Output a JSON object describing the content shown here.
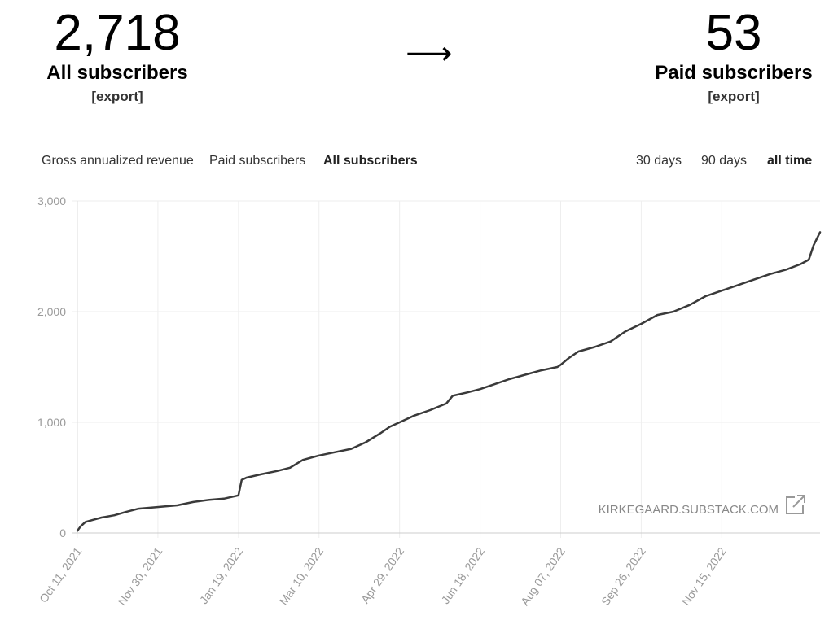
{
  "summary": {
    "all_subscribers": {
      "value": "2,718",
      "label": "All subscribers",
      "export": "[export]"
    },
    "arrow": "⟶",
    "paid_subscribers": {
      "value": "53",
      "label": "Paid subscribers",
      "export": "[export]"
    }
  },
  "metric_tabs": [
    {
      "label": "Gross annualized revenue",
      "active": false
    },
    {
      "label": "Paid subscribers",
      "active": false
    },
    {
      "label": "All subscribers",
      "active": true
    }
  ],
  "range_tabs": [
    {
      "label": "30 days",
      "active": false
    },
    {
      "label": "90 days",
      "active": false
    },
    {
      "label": "all time",
      "active": true
    }
  ],
  "watermark": "KIRKEGAARD.SUBSTACK.COM",
  "icons": {
    "external": "external-link-icon"
  },
  "colors": {
    "line": "#3a3a3a",
    "grid": "#eeeeee",
    "axis_text": "#999999"
  },
  "chart_data": {
    "type": "line",
    "title": "",
    "xlabel": "",
    "ylabel": "",
    "ylim": [
      0,
      3000
    ],
    "yticks": [
      0,
      1000,
      2000,
      3000
    ],
    "ytick_labels": [
      "0",
      "1,000",
      "2,000",
      "3,000"
    ],
    "xlim": [
      "2021-10-11",
      "2023-01-15"
    ],
    "xticks": [
      "2021-10-11",
      "2021-11-30",
      "2022-01-19",
      "2022-03-10",
      "2022-04-29",
      "2022-06-18",
      "2022-08-07",
      "2022-09-26",
      "2022-11-15"
    ],
    "xtick_labels": [
      "Oct 11, 2021",
      "Nov 30, 2021",
      "Jan 19, 2022",
      "Mar 10, 2022",
      "Apr 29, 2022",
      "Jun 18, 2022",
      "Aug 07, 2022",
      "Sep 26, 2022",
      "Nov 15, 2022"
    ],
    "grid": true,
    "series": [
      {
        "x": [
          "2021-10-11",
          "2021-10-13",
          "2021-10-16",
          "2021-10-21",
          "2021-10-26",
          "2021-11-03",
          "2021-11-10",
          "2021-11-18",
          "2021-11-26",
          "2021-12-04",
          "2021-12-12",
          "2021-12-22",
          "2022-01-01",
          "2022-01-10",
          "2022-01-19",
          "2022-01-21",
          "2022-01-24",
          "2022-02-02",
          "2022-02-12",
          "2022-02-20",
          "2022-02-28",
          "2022-03-10",
          "2022-03-20",
          "2022-03-30",
          "2022-04-08",
          "2022-04-17",
          "2022-04-23",
          "2022-04-29",
          "2022-05-08",
          "2022-05-18",
          "2022-05-28",
          "2022-06-01",
          "2022-06-10",
          "2022-06-18",
          "2022-06-26",
          "2022-07-06",
          "2022-07-16",
          "2022-07-26",
          "2022-08-05",
          "2022-08-07",
          "2022-08-12",
          "2022-08-18",
          "2022-08-28",
          "2022-09-07",
          "2022-09-16",
          "2022-09-26",
          "2022-10-06",
          "2022-10-16",
          "2022-10-26",
          "2022-11-05",
          "2022-11-15",
          "2022-11-25",
          "2022-12-05",
          "2022-12-15",
          "2022-12-25",
          "2023-01-03",
          "2023-01-08",
          "2023-01-11",
          "2023-01-15"
        ],
        "y": [
          20,
          60,
          100,
          120,
          140,
          160,
          190,
          220,
          230,
          240,
          250,
          280,
          300,
          310,
          340,
          480,
          500,
          530,
          560,
          590,
          660,
          700,
          730,
          760,
          820,
          900,
          960,
          1000,
          1060,
          1110,
          1170,
          1240,
          1270,
          1300,
          1340,
          1390,
          1430,
          1470,
          1500,
          1520,
          1580,
          1640,
          1680,
          1730,
          1820,
          1890,
          1970,
          2000,
          2060,
          2140,
          2190,
          2240,
          2290,
          2340,
          2380,
          2430,
          2470,
          2600,
          2718
        ]
      }
    ]
  }
}
